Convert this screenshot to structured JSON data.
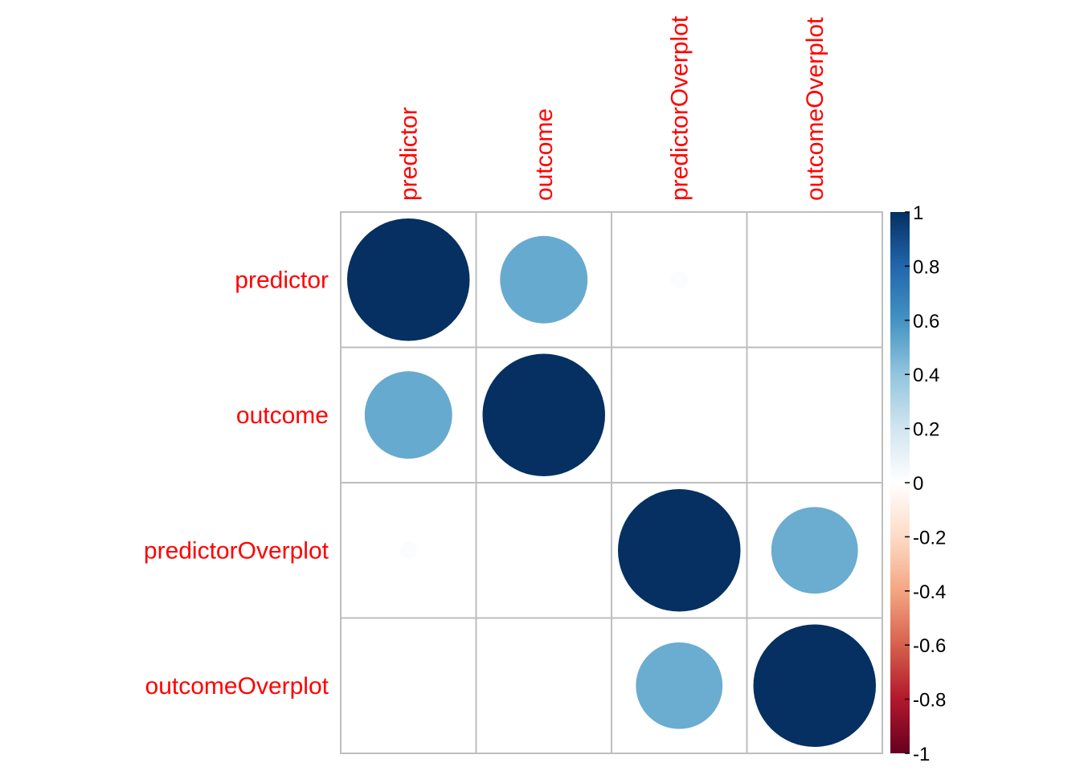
{
  "chart_data": {
    "type": "heatmap",
    "style": "circle correlation matrix",
    "variables": [
      "predictor",
      "outcome",
      "predictorOverplot",
      "outcomeOverplot"
    ],
    "matrix": [
      [
        1.0,
        0.51,
        0.02,
        0.0
      ],
      [
        0.51,
        1.0,
        0.0,
        0.0
      ],
      [
        0.02,
        0.0,
        1.0,
        0.5
      ],
      [
        0.0,
        0.0,
        0.5,
        1.0
      ]
    ],
    "color_range": [
      -1,
      1
    ],
    "colorbar_ticks": [
      "1",
      "0.8",
      "0.6",
      "0.4",
      "0.2",
      "0",
      "-0.2",
      "-0.4",
      "-0.6",
      "-0.8",
      "-1"
    ],
    "colorbar_colors": [
      "#67001F",
      "#B2182B",
      "#D6604D",
      "#F4A582",
      "#FDDBC7",
      "#FFFFFF",
      "#D1E5F0",
      "#92C5DE",
      "#4393C3",
      "#2166AC",
      "#053061"
    ],
    "label_color": "#ff0000",
    "grid_color": "#bebebe",
    "legend_position": "right"
  }
}
